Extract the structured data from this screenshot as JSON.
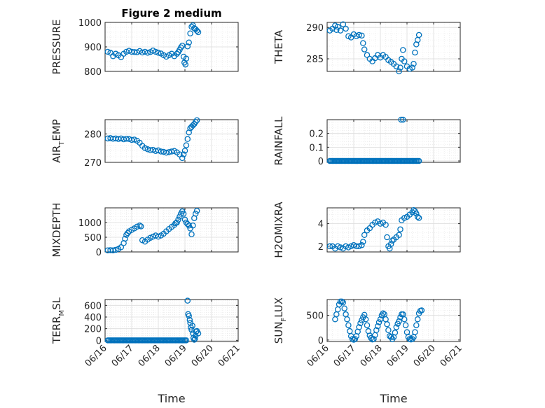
{
  "colors": {
    "marker": "#0072bd",
    "axis": "#262626",
    "grid": "#dcdcdc"
  },
  "chart_data": [
    {
      "type": "scatter",
      "title": "Figure 2 medium",
      "ylabel": "PRESSURE",
      "ylim": [
        800,
        1000
      ],
      "yticks": [
        800,
        900,
        1000
      ],
      "xlim": [
        0,
        5
      ],
      "xtick_labels": [],
      "grid": true,
      "points": [
        [
          0.1,
          880
        ],
        [
          0.2,
          876
        ],
        [
          0.3,
          862
        ],
        [
          0.4,
          872
        ],
        [
          0.5,
          866
        ],
        [
          0.6,
          858
        ],
        [
          0.7,
          872
        ],
        [
          0.8,
          880
        ],
        [
          0.9,
          884
        ],
        [
          1.0,
          880
        ],
        [
          1.1,
          879
        ],
        [
          1.2,
          878
        ],
        [
          1.3,
          883
        ],
        [
          1.4,
          877
        ],
        [
          1.5,
          880
        ],
        [
          1.6,
          876
        ],
        [
          1.7,
          879
        ],
        [
          1.8,
          885
        ],
        [
          1.9,
          880
        ],
        [
          2.0,
          876
        ],
        [
          2.1,
          873
        ],
        [
          2.2,
          866
        ],
        [
          2.3,
          860
        ],
        [
          2.4,
          866
        ],
        [
          2.5,
          872
        ],
        [
          2.6,
          862
        ],
        [
          2.7,
          872
        ],
        [
          2.75,
          879
        ],
        [
          2.8,
          888
        ],
        [
          2.85,
          898
        ],
        [
          2.9,
          905
        ],
        [
          2.95,
          860
        ],
        [
          2.98,
          836
        ],
        [
          3.02,
          828
        ],
        [
          3.05,
          852
        ],
        [
          3.1,
          902
        ],
        [
          3.15,
          918
        ],
        [
          3.2,
          955
        ],
        [
          3.25,
          982
        ],
        [
          3.3,
          988
        ],
        [
          3.35,
          976
        ],
        [
          3.4,
          972
        ],
        [
          3.45,
          966
        ],
        [
          3.5,
          960
        ]
      ]
    },
    {
      "type": "scatter",
      "ylabel": "THETA",
      "ylim": [
        283,
        290.8
      ],
      "yticks": [
        285,
        290
      ],
      "xlim": [
        0,
        5
      ],
      "xtick_labels": [],
      "grid": true,
      "points": [
        [
          0.1,
          289.5
        ],
        [
          0.2,
          289.8
        ],
        [
          0.3,
          290.3
        ],
        [
          0.35,
          289.6
        ],
        [
          0.4,
          290.1
        ],
        [
          0.5,
          289.5
        ],
        [
          0.6,
          290.5
        ],
        [
          0.7,
          289.8
        ],
        [
          0.8,
          288.6
        ],
        [
          0.9,
          288.4
        ],
        [
          1.0,
          288.9
        ],
        [
          1.1,
          288.6
        ],
        [
          1.2,
          288.8
        ],
        [
          1.3,
          288.7
        ],
        [
          1.35,
          287.5
        ],
        [
          1.4,
          286.5
        ],
        [
          1.5,
          285.6
        ],
        [
          1.6,
          285.0
        ],
        [
          1.7,
          284.6
        ],
        [
          1.8,
          285.1
        ],
        [
          1.9,
          285.6
        ],
        [
          2.0,
          285.2
        ],
        [
          2.1,
          285.6
        ],
        [
          2.2,
          285.3
        ],
        [
          2.3,
          284.8
        ],
        [
          2.4,
          284.5
        ],
        [
          2.5,
          284.2
        ],
        [
          2.6,
          283.8
        ],
        [
          2.7,
          283.0
        ],
        [
          2.75,
          283.6
        ],
        [
          2.8,
          285.0
        ],
        [
          2.85,
          286.4
        ],
        [
          2.9,
          284.6
        ],
        [
          3.0,
          283.8
        ],
        [
          3.1,
          283.4
        ],
        [
          3.2,
          283.6
        ],
        [
          3.25,
          284.2
        ],
        [
          3.3,
          286.0
        ],
        [
          3.35,
          287.3
        ],
        [
          3.4,
          288.0
        ],
        [
          3.45,
          288.8
        ]
      ]
    },
    {
      "type": "scatter",
      "ylabel": "AIR",
      "ylabel_sub": "T",
      "ylabel_rest": "EMP",
      "ylim": [
        270,
        285
      ],
      "yticks": [
        270,
        280
      ],
      "xlim": [
        0,
        5
      ],
      "xtick_labels": [],
      "grid": true,
      "points": [
        [
          0.1,
          278.4
        ],
        [
          0.2,
          278.5
        ],
        [
          0.3,
          278.3
        ],
        [
          0.4,
          278.4
        ],
        [
          0.5,
          278.2
        ],
        [
          0.6,
          278.4
        ],
        [
          0.7,
          278.1
        ],
        [
          0.8,
          278.3
        ],
        [
          0.9,
          278.2
        ],
        [
          1.0,
          277.9
        ],
        [
          1.1,
          278.0
        ],
        [
          1.2,
          277.6
        ],
        [
          1.3,
          276.9
        ],
        [
          1.4,
          275.8
        ],
        [
          1.5,
          275.0
        ],
        [
          1.6,
          274.6
        ],
        [
          1.7,
          274.3
        ],
        [
          1.8,
          274.4
        ],
        [
          1.9,
          274.0
        ],
        [
          2.0,
          274.2
        ],
        [
          2.1,
          273.8
        ],
        [
          2.2,
          273.7
        ],
        [
          2.3,
          273.4
        ],
        [
          2.4,
          273.6
        ],
        [
          2.5,
          273.8
        ],
        [
          2.6,
          274.0
        ],
        [
          2.7,
          273.5
        ],
        [
          2.8,
          272.8
        ],
        [
          2.9,
          271.5
        ],
        [
          2.95,
          272.8
        ],
        [
          3.0,
          274.1
        ],
        [
          3.05,
          276.0
        ],
        [
          3.1,
          278.2
        ],
        [
          3.15,
          280.5
        ],
        [
          3.2,
          282.0
        ],
        [
          3.25,
          282.5
        ],
        [
          3.3,
          283.0
        ],
        [
          3.35,
          283.5
        ],
        [
          3.4,
          284.2
        ],
        [
          3.45,
          284.8
        ]
      ]
    },
    {
      "type": "scatter",
      "ylabel": "RAINFALL",
      "ylim": [
        -0.01,
        0.3
      ],
      "yticks": [
        0,
        0.1,
        0.2
      ],
      "xlim": [
        0,
        5
      ],
      "xtick_labels": [],
      "grid": true,
      "baseline": {
        "x_from": 0.1,
        "x_to": 3.45,
        "step": 0.05,
        "y": 0
      },
      "points": [
        [
          2.78,
          0.3
        ],
        [
          2.85,
          0.3
        ]
      ]
    },
    {
      "type": "scatter",
      "ylabel": "MIXDEPTH",
      "ylim": [
        0,
        1500
      ],
      "yticks": [
        0,
        500,
        1000
      ],
      "xlim": [
        0,
        5
      ],
      "xtick_labels": [],
      "grid": true,
      "points": [
        [
          0.1,
          55
        ],
        [
          0.2,
          60
        ],
        [
          0.3,
          55
        ],
        [
          0.4,
          70
        ],
        [
          0.5,
          100
        ],
        [
          0.6,
          160
        ],
        [
          0.7,
          300
        ],
        [
          0.75,
          450
        ],
        [
          0.8,
          580
        ],
        [
          0.85,
          640
        ],
        [
          0.9,
          700
        ],
        [
          1.0,
          750
        ],
        [
          1.1,
          800
        ],
        [
          1.2,
          860
        ],
        [
          1.3,
          900
        ],
        [
          1.35,
          870
        ],
        [
          1.4,
          400
        ],
        [
          1.5,
          350
        ],
        [
          1.6,
          420
        ],
        [
          1.7,
          480
        ],
        [
          1.8,
          520
        ],
        [
          1.9,
          560
        ],
        [
          2.0,
          520
        ],
        [
          2.1,
          560
        ],
        [
          2.2,
          620
        ],
        [
          2.3,
          700
        ],
        [
          2.4,
          780
        ],
        [
          2.5,
          850
        ],
        [
          2.6,
          920
        ],
        [
          2.65,
          980
        ],
        [
          2.7,
          1000
        ],
        [
          2.75,
          1100
        ],
        [
          2.8,
          1200
        ],
        [
          2.85,
          1300
        ],
        [
          2.9,
          1380
        ],
        [
          2.95,
          1300
        ],
        [
          3.0,
          1100
        ],
        [
          3.05,
          1000
        ],
        [
          3.1,
          950
        ],
        [
          3.15,
          900
        ],
        [
          3.2,
          800
        ],
        [
          3.25,
          600
        ],
        [
          3.3,
          900
        ],
        [
          3.35,
          1150
        ],
        [
          3.4,
          1300
        ],
        [
          3.45,
          1400
        ]
      ]
    },
    {
      "type": "scatter",
      "ylabel": "H2OMIXRA",
      "ylim": [
        1.5,
        5.4
      ],
      "yticks": [
        2,
        4
      ],
      "xlim": [
        0,
        5
      ],
      "xtick_labels": [],
      "grid": true,
      "points": [
        [
          0.1,
          2.0
        ],
        [
          0.2,
          2.0
        ],
        [
          0.3,
          1.8
        ],
        [
          0.4,
          2.0
        ],
        [
          0.5,
          1.9
        ],
        [
          0.6,
          1.8
        ],
        [
          0.7,
          2.0
        ],
        [
          0.8,
          1.9
        ],
        [
          0.9,
          2.0
        ],
        [
          1.0,
          2.1
        ],
        [
          1.1,
          2.0
        ],
        [
          1.2,
          2.0
        ],
        [
          1.3,
          2.1
        ],
        [
          1.35,
          2.4
        ],
        [
          1.4,
          3.0
        ],
        [
          1.5,
          3.4
        ],
        [
          1.6,
          3.6
        ],
        [
          1.7,
          3.9
        ],
        [
          1.8,
          4.1
        ],
        [
          1.9,
          4.2
        ],
        [
          2.0,
          4.0
        ],
        [
          2.1,
          4.1
        ],
        [
          2.2,
          3.9
        ],
        [
          2.25,
          2.8
        ],
        [
          2.3,
          2.0
        ],
        [
          2.35,
          1.8
        ],
        [
          2.4,
          2.2
        ],
        [
          2.45,
          2.5
        ],
        [
          2.5,
          2.6
        ],
        [
          2.6,
          2.8
        ],
        [
          2.7,
          3.0
        ],
        [
          2.75,
          3.5
        ],
        [
          2.8,
          4.3
        ],
        [
          2.9,
          4.5
        ],
        [
          3.0,
          4.6
        ],
        [
          3.1,
          4.8
        ],
        [
          3.2,
          5.0
        ],
        [
          3.25,
          5.2
        ],
        [
          3.3,
          5.1
        ],
        [
          3.35,
          4.9
        ],
        [
          3.4,
          4.6
        ],
        [
          3.45,
          4.5
        ]
      ]
    },
    {
      "type": "scatter",
      "ylabel": "TERR",
      "ylabel_sub": "M",
      "ylabel_rest": "SL",
      "ylim": [
        -20,
        700
      ],
      "yticks": [
        0,
        200,
        400,
        600
      ],
      "xlim": [
        0,
        5
      ],
      "xtick_labels": [
        "06/16",
        "06/17",
        "06/18",
        "06/19",
        "06/20",
        "06/21"
      ],
      "xlabel": "Time",
      "grid": true,
      "baseline": {
        "x_from": 0.1,
        "x_to": 3.05,
        "step": 0.05,
        "y": 0
      },
      "points": [
        [
          3.1,
          680
        ],
        [
          3.12,
          450
        ],
        [
          3.15,
          420
        ],
        [
          3.18,
          350
        ],
        [
          3.2,
          300
        ],
        [
          3.22,
          220
        ],
        [
          3.25,
          180
        ],
        [
          3.28,
          250
        ],
        [
          3.3,
          120
        ],
        [
          3.32,
          40
        ],
        [
          3.35,
          10
        ],
        [
          3.38,
          30
        ],
        [
          3.4,
          80
        ],
        [
          3.42,
          150
        ],
        [
          3.45,
          160
        ],
        [
          3.5,
          120
        ]
      ]
    },
    {
      "type": "scatter",
      "ylabel": "SUN",
      "ylabel_sub": "F",
      "ylabel_rest": "LUX",
      "ylim": [
        -30,
        820
      ],
      "yticks": [
        0,
        500
      ],
      "xlim": [
        0,
        5
      ],
      "xtick_labels": [
        "06/16",
        "06/17",
        "06/18",
        "06/19",
        "06/20",
        "06/21"
      ],
      "xlabel": "Time",
      "grid": true,
      "points": [
        [
          0.3,
          420
        ],
        [
          0.35,
          520
        ],
        [
          0.4,
          620
        ],
        [
          0.45,
          720
        ],
        [
          0.5,
          780
        ],
        [
          0.55,
          780
        ],
        [
          0.6,
          760
        ],
        [
          0.65,
          640
        ],
        [
          0.7,
          520
        ],
        [
          0.75,
          420
        ],
        [
          0.8,
          300
        ],
        [
          0.85,
          180
        ],
        [
          0.9,
          80
        ],
        [
          0.95,
          20
        ],
        [
          1.0,
          5
        ],
        [
          1.05,
          20
        ],
        [
          1.1,
          80
        ],
        [
          1.15,
          170
        ],
        [
          1.2,
          260
        ],
        [
          1.25,
          340
        ],
        [
          1.3,
          400
        ],
        [
          1.35,
          460
        ],
        [
          1.4,
          510
        ],
        [
          1.45,
          420
        ],
        [
          1.5,
          300
        ],
        [
          1.55,
          180
        ],
        [
          1.6,
          90
        ],
        [
          1.65,
          40
        ],
        [
          1.7,
          10
        ],
        [
          1.75,
          20
        ],
        [
          1.8,
          100
        ],
        [
          1.85,
          200
        ],
        [
          1.9,
          280
        ],
        [
          1.95,
          360
        ],
        [
          2.0,
          420
        ],
        [
          2.05,
          500
        ],
        [
          2.1,
          540
        ],
        [
          2.15,
          520
        ],
        [
          2.2,
          420
        ],
        [
          2.25,
          320
        ],
        [
          2.3,
          200
        ],
        [
          2.35,
          80
        ],
        [
          2.4,
          60
        ],
        [
          2.45,
          20
        ],
        [
          2.5,
          60
        ],
        [
          2.55,
          150
        ],
        [
          2.6,
          260
        ],
        [
          2.65,
          330
        ],
        [
          2.7,
          380
        ],
        [
          2.75,
          460
        ],
        [
          2.8,
          520
        ],
        [
          2.85,
          520
        ],
        [
          2.9,
          420
        ],
        [
          2.95,
          300
        ],
        [
          3.0,
          160
        ],
        [
          3.05,
          60
        ],
        [
          3.1,
          20
        ],
        [
          3.15,
          10
        ],
        [
          3.2,
          20
        ],
        [
          3.25,
          60
        ],
        [
          3.3,
          160
        ],
        [
          3.35,
          300
        ],
        [
          3.4,
          420
        ],
        [
          3.45,
          540
        ],
        [
          3.5,
          590
        ],
        [
          3.55,
          600
        ]
      ]
    }
  ]
}
